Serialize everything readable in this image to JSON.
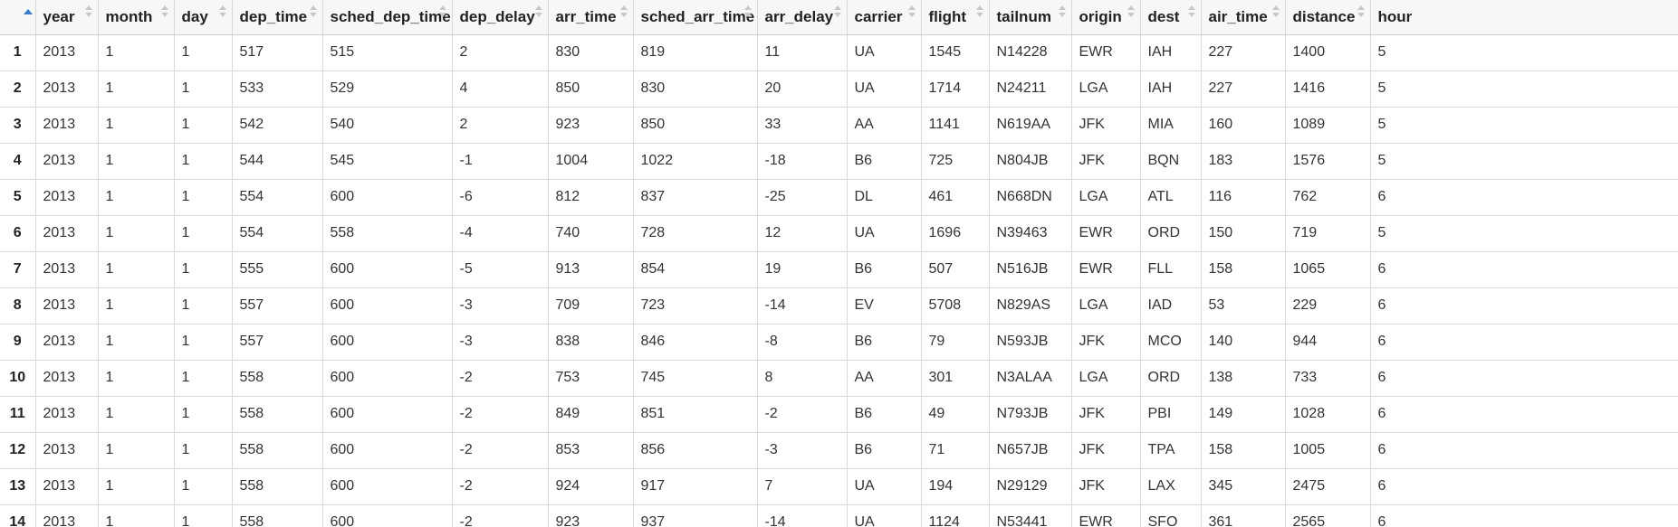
{
  "table": {
    "columns": [
      "year",
      "month",
      "day",
      "dep_time",
      "sched_dep_time",
      "dep_delay",
      "arr_time",
      "sched_arr_time",
      "arr_delay",
      "carrier",
      "flight",
      "tailnum",
      "origin",
      "dest",
      "air_time",
      "distance",
      "hour"
    ],
    "rows": [
      [
        "1",
        "2013",
        "1",
        "1",
        "517",
        "515",
        "2",
        "830",
        "819",
        "11",
        "UA",
        "1545",
        "N14228",
        "EWR",
        "IAH",
        "227",
        "1400",
        "5"
      ],
      [
        "2",
        "2013",
        "1",
        "1",
        "533",
        "529",
        "4",
        "850",
        "830",
        "20",
        "UA",
        "1714",
        "N24211",
        "LGA",
        "IAH",
        "227",
        "1416",
        "5"
      ],
      [
        "3",
        "2013",
        "1",
        "1",
        "542",
        "540",
        "2",
        "923",
        "850",
        "33",
        "AA",
        "1141",
        "N619AA",
        "JFK",
        "MIA",
        "160",
        "1089",
        "5"
      ],
      [
        "4",
        "2013",
        "1",
        "1",
        "544",
        "545",
        "-1",
        "1004",
        "1022",
        "-18",
        "B6",
        "725",
        "N804JB",
        "JFK",
        "BQN",
        "183",
        "1576",
        "5"
      ],
      [
        "5",
        "2013",
        "1",
        "1",
        "554",
        "600",
        "-6",
        "812",
        "837",
        "-25",
        "DL",
        "461",
        "N668DN",
        "LGA",
        "ATL",
        "116",
        "762",
        "6"
      ],
      [
        "6",
        "2013",
        "1",
        "1",
        "554",
        "558",
        "-4",
        "740",
        "728",
        "12",
        "UA",
        "1696",
        "N39463",
        "EWR",
        "ORD",
        "150",
        "719",
        "5"
      ],
      [
        "7",
        "2013",
        "1",
        "1",
        "555",
        "600",
        "-5",
        "913",
        "854",
        "19",
        "B6",
        "507",
        "N516JB",
        "EWR",
        "FLL",
        "158",
        "1065",
        "6"
      ],
      [
        "8",
        "2013",
        "1",
        "1",
        "557",
        "600",
        "-3",
        "709",
        "723",
        "-14",
        "EV",
        "5708",
        "N829AS",
        "LGA",
        "IAD",
        "53",
        "229",
        "6"
      ],
      [
        "9",
        "2013",
        "1",
        "1",
        "557",
        "600",
        "-3",
        "838",
        "846",
        "-8",
        "B6",
        "79",
        "N593JB",
        "JFK",
        "MCO",
        "140",
        "944",
        "6"
      ],
      [
        "10",
        "2013",
        "1",
        "1",
        "558",
        "600",
        "-2",
        "753",
        "745",
        "8",
        "AA",
        "301",
        "N3ALAA",
        "LGA",
        "ORD",
        "138",
        "733",
        "6"
      ],
      [
        "11",
        "2013",
        "1",
        "1",
        "558",
        "600",
        "-2",
        "849",
        "851",
        "-2",
        "B6",
        "49",
        "N793JB",
        "JFK",
        "PBI",
        "149",
        "1028",
        "6"
      ],
      [
        "12",
        "2013",
        "1",
        "1",
        "558",
        "600",
        "-2",
        "853",
        "856",
        "-3",
        "B6",
        "71",
        "N657JB",
        "JFK",
        "TPA",
        "158",
        "1005",
        "6"
      ],
      [
        "13",
        "2013",
        "1",
        "1",
        "558",
        "600",
        "-2",
        "924",
        "917",
        "7",
        "UA",
        "194",
        "N29129",
        "JFK",
        "LAX",
        "345",
        "2475",
        "6"
      ],
      [
        "14",
        "2013",
        "1",
        "1",
        "558",
        "600",
        "-2",
        "923",
        "937",
        "-14",
        "UA",
        "1124",
        "N53441",
        "EWR",
        "SFO",
        "361",
        "2565",
        "6"
      ]
    ]
  },
  "icons": {
    "sort_active": "sort-ascending-icon",
    "sort_column": "sort-icon"
  },
  "colors": {
    "header_bg": "#f7f7f7",
    "grid_line": "#d9d9d9",
    "sort_active": "#2f7bd8"
  }
}
